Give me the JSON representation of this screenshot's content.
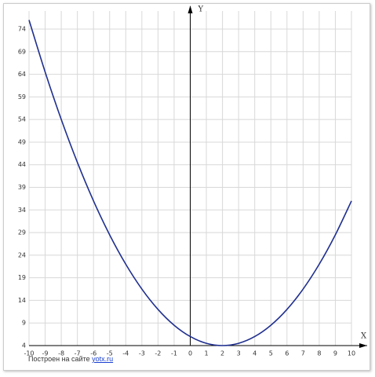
{
  "chart_data": {
    "type": "line",
    "x_label": "X",
    "y_label": "Y",
    "x": [
      -10,
      -9,
      -8,
      -7,
      -6,
      -5,
      -4,
      -3,
      -2,
      -1,
      0,
      1,
      2,
      3,
      4,
      5,
      6,
      7,
      8,
      9,
      10
    ],
    "series": [
      {
        "color": "#1f2f8f",
        "values": [
          76,
          64.5,
          54,
          44.5,
          36,
          28.5,
          22,
          16.5,
          12,
          8.5,
          6,
          4.5,
          4,
          4.5,
          6,
          8.5,
          12,
          16.5,
          22,
          28.5,
          36
        ]
      }
    ],
    "xlim": [
      -10,
      10
    ],
    "ylim": [
      4,
      78
    ],
    "xticks": [
      -10,
      -9,
      -8,
      -7,
      -6,
      -5,
      -4,
      -3,
      -2,
      -1,
      0,
      1,
      2,
      3,
      4,
      5,
      6,
      7,
      8,
      9,
      10
    ],
    "yticks": [
      4,
      9,
      14,
      19,
      24,
      29,
      34,
      39,
      44,
      49,
      54,
      59,
      64,
      69,
      74
    ],
    "grid": true
  },
  "footer": {
    "text": "Построен на сайте",
    "link": "yotx.ru"
  }
}
